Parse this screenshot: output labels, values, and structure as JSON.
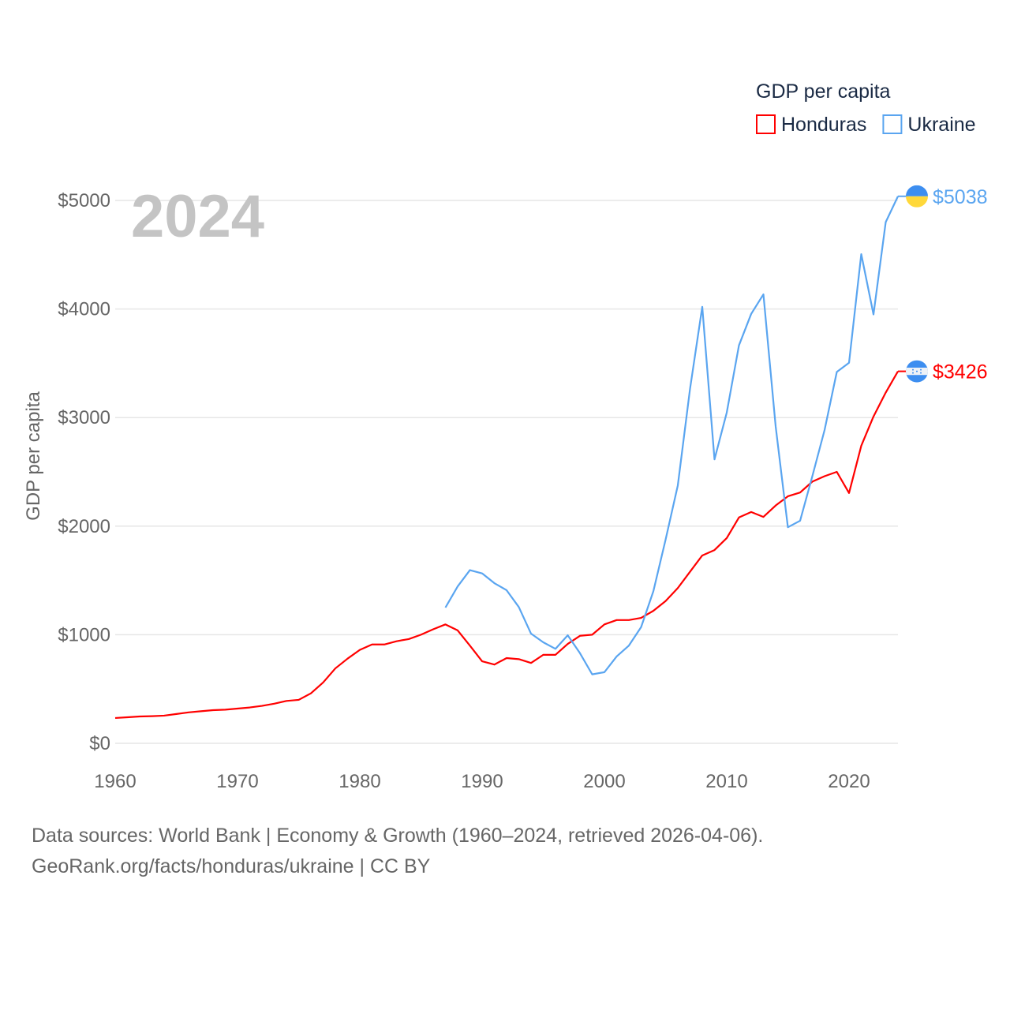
{
  "chart_data": {
    "type": "line",
    "title": "GDP per capita",
    "year_label": "2024",
    "ylabel": "GDP per capita",
    "xlabel": "",
    "xlim": [
      1960,
      2024
    ],
    "ylim": [
      0,
      5000
    ],
    "x_ticks": [
      "1960",
      "1970",
      "1980",
      "1990",
      "2000",
      "2010",
      "2020"
    ],
    "y_ticks": [
      "$0",
      "$1000",
      "$2000",
      "$3000",
      "$4000",
      "$5000"
    ],
    "grid": true,
    "legend_placement": "top-right",
    "series": [
      {
        "name": "Honduras",
        "color": "#ff0000",
        "start_year": 1960,
        "end_label": "$3426",
        "values": [
          233,
          240,
          247,
          250,
          255,
          270,
          285,
          295,
          305,
          310,
          320,
          330,
          345,
          365,
          390,
          400,
          460,
          560,
          690,
          780,
          860,
          910,
          910,
          940,
          960,
          1000,
          1050,
          1095,
          1040,
          900,
          755,
          725,
          785,
          775,
          740,
          815,
          815,
          915,
          990,
          1000,
          1095,
          1135,
          1135,
          1155,
          1220,
          1310,
          1430,
          1580,
          1730,
          1780,
          1890,
          2080,
          2130,
          2085,
          2190,
          2275,
          2310,
          2410,
          2460,
          2500,
          2305,
          2740,
          3010,
          3230,
          3426
        ]
      },
      {
        "name": "Ukraine",
        "color": "#5aa5f0",
        "start_year": 1987,
        "end_label": "$5038",
        "values": [
          1250,
          1445,
          1595,
          1565,
          1475,
          1410,
          1255,
          1010,
          930,
          870,
          995,
          830,
          635,
          655,
          800,
          900,
          1070,
          1400,
          1875,
          2375,
          3265,
          4020,
          2615,
          3045,
          3665,
          3955,
          4135,
          2920,
          1990,
          2050,
          2460,
          2885,
          3420,
          3505,
          4505,
          3950,
          4800,
          5038
        ]
      }
    ]
  },
  "footer": {
    "line1": "Data sources: World Bank | Economy & Growth (1960–2024, retrieved 2026-04-06).",
    "line2": "GeoRank.org/facts/honduras/ukraine | CC BY"
  }
}
